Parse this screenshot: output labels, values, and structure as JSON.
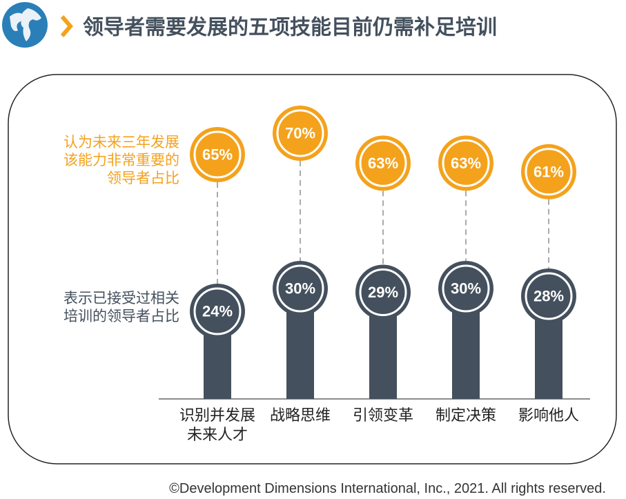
{
  "chart_data": {
    "type": "lollipop",
    "title": "领导者需要发展的五项技能目前仍需补足培训",
    "categories": [
      "识别并发展未来人才",
      "战略思维",
      "引领变革",
      "制定决策",
      "影响他人"
    ],
    "series": [
      {
        "name": "认为未来三年发展该能力非常重要的领导者占比",
        "color": "#f4a21c",
        "values": [
          65,
          70,
          63,
          63,
          61
        ],
        "value_labels": [
          "65%",
          "70%",
          "63%",
          "63%",
          "61%"
        ]
      },
      {
        "name": "表示已接受过相关培训的领导者占比",
        "color": "#44505d",
        "values": [
          24,
          30,
          29,
          30,
          28
        ],
        "value_labels": [
          "24%",
          "30%",
          "29%",
          "30%",
          "28%"
        ]
      }
    ],
    "footnote": "©Development Dimensions International, Inc., 2021. All rights reserved."
  }
}
